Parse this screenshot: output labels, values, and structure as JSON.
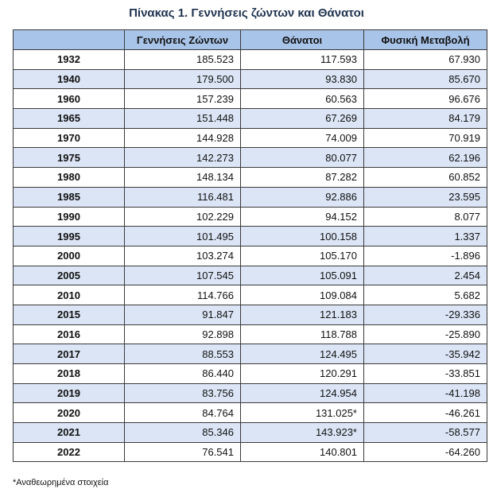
{
  "title": "Πίνακας 1. Γεννήσεις ζώντων και Θάνατοι",
  "table": {
    "headers": [
      "",
      "Γεννήσεις Ζώντων",
      "Θάνατοι",
      "Φυσική Μεταβολή"
    ],
    "rows": [
      {
        "year": "1932",
        "births": "185.523",
        "deaths": "117.593",
        "change": "67.930"
      },
      {
        "year": "1940",
        "births": "179.500",
        "deaths": "93.830",
        "change": "85.670"
      },
      {
        "year": "1960",
        "births": "157.239",
        "deaths": "60.563",
        "change": "96.676"
      },
      {
        "year": "1965",
        "births": "151.448",
        "deaths": "67.269",
        "change": "84.179"
      },
      {
        "year": "1970",
        "births": "144.928",
        "deaths": "74.009",
        "change": "70.919"
      },
      {
        "year": "1975",
        "births": "142.273",
        "deaths": "80.077",
        "change": "62.196"
      },
      {
        "year": "1980",
        "births": "148.134",
        "deaths": "87.282",
        "change": "60.852"
      },
      {
        "year": "1985",
        "births": "116.481",
        "deaths": "92.886",
        "change": "23.595"
      },
      {
        "year": "1990",
        "births": "102.229",
        "deaths": "94.152",
        "change": "8.077"
      },
      {
        "year": "1995",
        "births": "101.495",
        "deaths": "100.158",
        "change": "1.337"
      },
      {
        "year": "2000",
        "births": "103.274",
        "deaths": "105.170",
        "change": "-1.896"
      },
      {
        "year": "2005",
        "births": "107.545",
        "deaths": "105.091",
        "change": "2.454"
      },
      {
        "year": "2010",
        "births": "114.766",
        "deaths": "109.084",
        "change": "5.682"
      },
      {
        "year": "2015",
        "births": "91.847",
        "deaths": "121.183",
        "change": "-29.336"
      },
      {
        "year": "2016",
        "births": "92.898",
        "deaths": "118.788",
        "change": "-25.890"
      },
      {
        "year": "2017",
        "births": "88.553",
        "deaths": "124.495",
        "change": "-35.942"
      },
      {
        "year": "2018",
        "births": "86.440",
        "deaths": "120.291",
        "change": "-33.851"
      },
      {
        "year": "2019",
        "births": "83.756",
        "deaths": "124.954",
        "change": "-41.198"
      },
      {
        "year": "2020",
        "births": "84.764",
        "deaths": "131.025*",
        "change": "-46.261"
      },
      {
        "year": "2021",
        "births": "85.346",
        "deaths": "143.923*",
        "change": "-58.577"
      },
      {
        "year": "2022",
        "births": "76.541",
        "deaths": "140.801",
        "change": "-64.260"
      }
    ]
  },
  "footnote": "*Αναθεωρημένα στοιχεία",
  "colors": {
    "title": "#1f3350",
    "header_bg": "#a9c4e9",
    "stripe_bg": "#dbe5f5",
    "border": "#3a3a3a"
  }
}
